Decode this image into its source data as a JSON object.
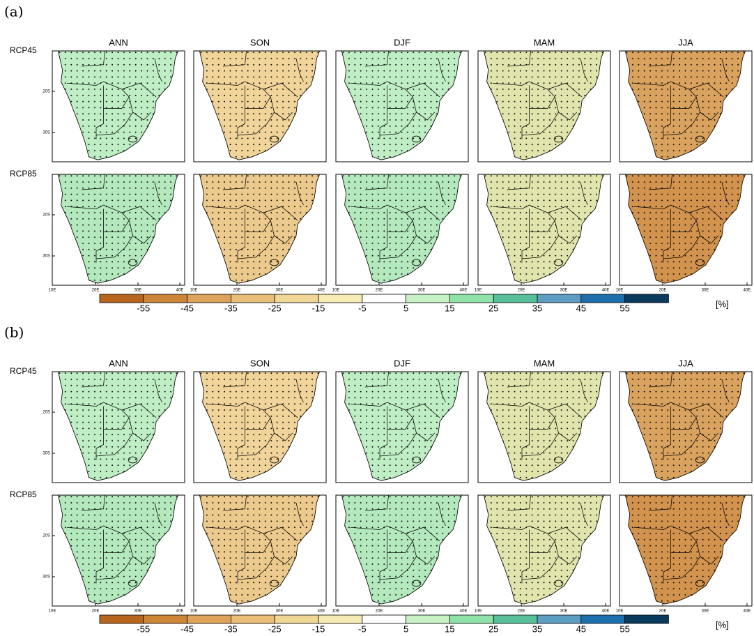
{
  "figures": [
    {
      "label": "(a)",
      "seasons": [
        "ANN",
        "SON",
        "DJF",
        "MAM",
        "JJA"
      ],
      "rows": [
        "RCP45",
        "RCP85"
      ],
      "lat_ticks": [
        "20S",
        "30S"
      ],
      "lon_ticks": [
        "10E",
        "20E",
        "30E",
        "40E"
      ],
      "colorbar": {
        "labels": [
          -55,
          -45,
          -35,
          -25,
          -15,
          -5,
          5,
          15,
          25,
          35,
          45,
          55
        ],
        "unit": "[%]"
      }
    },
    {
      "label": "(b)",
      "seasons": [
        "ANN",
        "SON",
        "DJF",
        "MAM",
        "JJA"
      ],
      "rows": [
        "RCP45",
        "RCP85"
      ],
      "lat_ticks": [
        "20S",
        "30S"
      ],
      "lon_ticks": [
        "10E",
        "20E",
        "30E",
        "40E"
      ],
      "colorbar": {
        "labels": [
          -55,
          -45,
          -35,
          -25,
          -15,
          -5,
          5,
          15,
          25,
          35,
          45,
          55
        ],
        "unit": "[%]"
      }
    }
  ]
}
